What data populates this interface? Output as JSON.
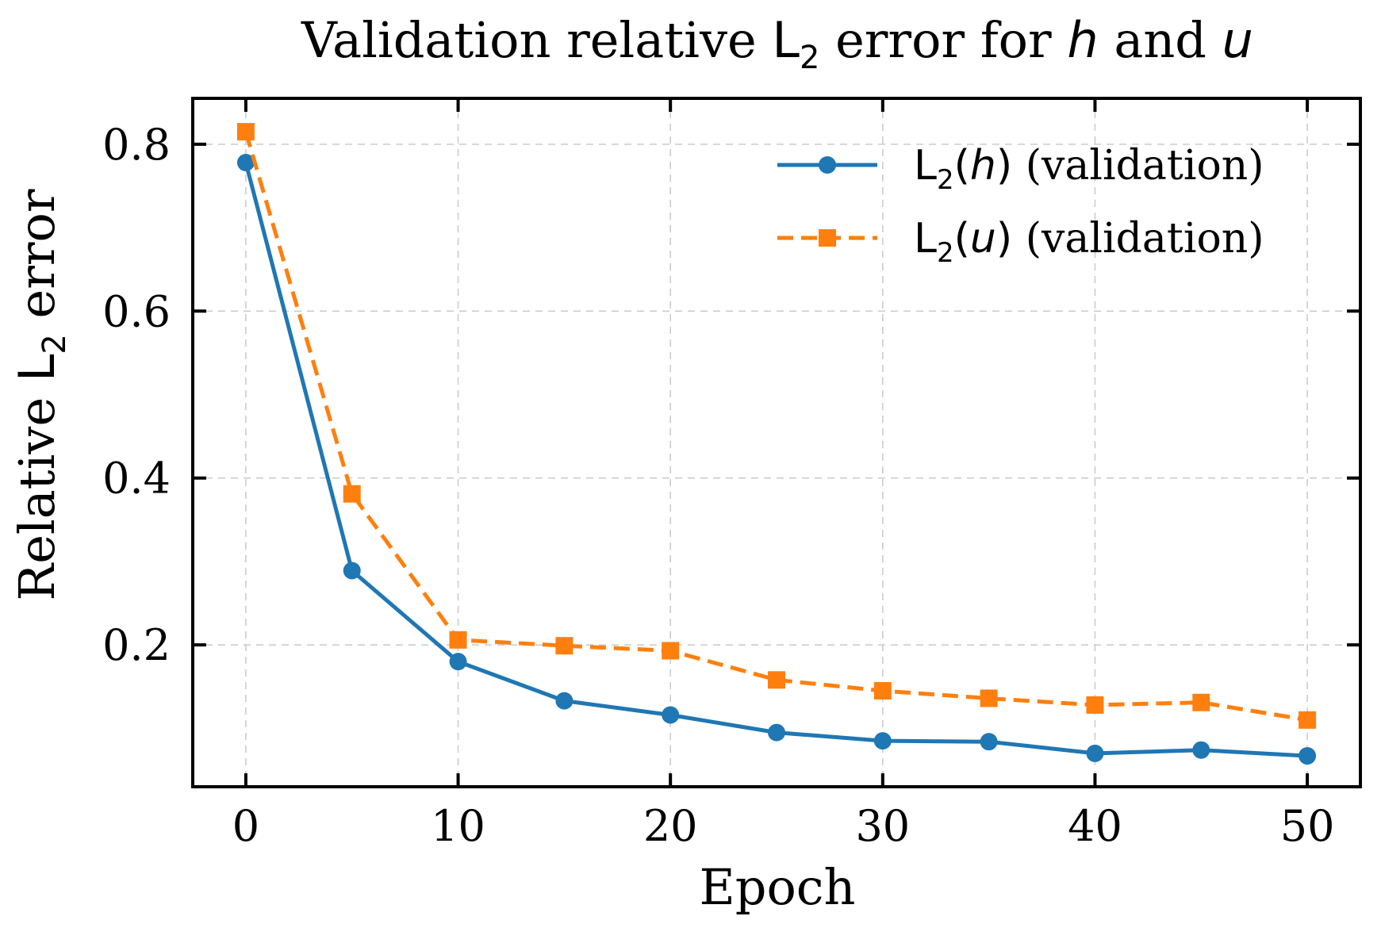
{
  "chart_data": {
    "type": "line",
    "title": {
      "prefix": "Validation relative ",
      "l_symbol": "L",
      "subscript": "2",
      "middle": " error for ",
      "var_h": "h",
      "connector": " and ",
      "var_u": "u"
    },
    "xlabel": "Epoch",
    "ylabel": {
      "prefix": "Relative ",
      "l_symbol": "L",
      "subscript": "2",
      "suffix": " error"
    },
    "x": [
      0,
      5,
      10,
      15,
      20,
      25,
      30,
      35,
      40,
      45,
      50
    ],
    "xlim": [
      -2.5,
      52.5
    ],
    "ylim": [
      0.03,
      0.855
    ],
    "xticks": [
      0,
      10,
      20,
      30,
      40,
      50
    ],
    "xtick_labels": [
      "0",
      "10",
      "20",
      "30",
      "40",
      "50"
    ],
    "yticks": [
      0.2,
      0.4,
      0.6,
      0.8
    ],
    "ytick_labels": [
      "0.2",
      "0.4",
      "0.6",
      "0.8"
    ],
    "grid": true,
    "legend_position": "top-right",
    "series": [
      {
        "key": "h",
        "legend": {
          "l_symbol": "L",
          "subscript": "2",
          "open": "(",
          "var": "h",
          "close": ")",
          "suffix": " (validation)"
        },
        "color": "#1f77b4",
        "line_style": "solid",
        "marker": "circle",
        "values": [
          0.778,
          0.289,
          0.18,
          0.133,
          0.116,
          0.095,
          0.085,
          0.084,
          0.07,
          0.074,
          0.067
        ]
      },
      {
        "key": "u",
        "legend": {
          "l_symbol": "L",
          "subscript": "2",
          "open": "(",
          "var": "u",
          "close": ")",
          "suffix": " (validation)"
        },
        "color": "#ff7f0e",
        "line_style": "dashed",
        "marker": "square",
        "values": [
          0.815,
          0.381,
          0.206,
          0.199,
          0.193,
          0.158,
          0.145,
          0.136,
          0.128,
          0.131,
          0.11
        ]
      }
    ]
  }
}
